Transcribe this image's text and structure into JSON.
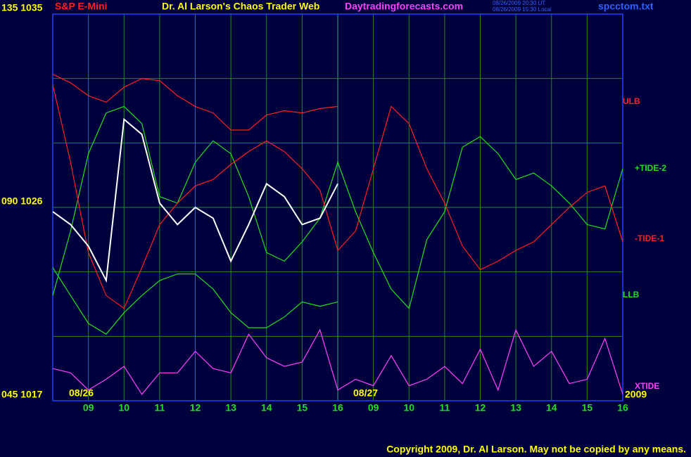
{
  "header": {
    "symbol": "S&P E-Mini",
    "title": "Dr. Al Larson's Chaos Trader Web",
    "site": "Daytradingforecasts.com",
    "timestamp_ut": "08/26/2009 20:30 UT",
    "timestamp_local": "08/26/2009 15:30 Local",
    "file": "spcctom.txt"
  },
  "chart_data": {
    "type": "line",
    "x": [
      0,
      0.5,
      1,
      1.5,
      2,
      2.5,
      3,
      3.5,
      4,
      4.5,
      5,
      5.5,
      6,
      6.5,
      7,
      7.5,
      8,
      8.5,
      9,
      9.5,
      10,
      10.5,
      11,
      11.5,
      12,
      12.5,
      13,
      13.5,
      14,
      14.5,
      15,
      15.5,
      16
    ],
    "xlim": [
      0,
      16
    ],
    "xticks": [
      {
        "value": 1,
        "label": "09"
      },
      {
        "value": 2,
        "label": "10"
      },
      {
        "value": 3,
        "label": "11"
      },
      {
        "value": 4,
        "label": "12"
      },
      {
        "value": 5,
        "label": "13"
      },
      {
        "value": 6,
        "label": "14"
      },
      {
        "value": 7,
        "label": "15"
      },
      {
        "value": 8,
        "label": "16"
      },
      {
        "value": 9,
        "label": "09"
      },
      {
        "value": 10,
        "label": "10"
      },
      {
        "value": 11,
        "label": "11"
      },
      {
        "value": 12,
        "label": "12"
      },
      {
        "value": 13,
        "label": "13"
      },
      {
        "value": 14,
        "label": "14"
      },
      {
        "value": 15,
        "label": "15"
      },
      {
        "value": 16,
        "label": "16"
      }
    ],
    "ylim": [
      1017,
      1035
    ],
    "yticks": [
      {
        "value": 1017,
        "label": "045 1017"
      },
      {
        "value": 1020,
        "label": null
      },
      {
        "value": 1023,
        "label": null
      },
      {
        "value": 1026,
        "label": "090 1026"
      },
      {
        "value": 1029,
        "label": null
      },
      {
        "value": 1032,
        "label": null
      },
      {
        "value": 1035,
        "label": "135 1035"
      }
    ],
    "grid": true,
    "date_labels": [
      "08/26",
      "08/27",
      "2009"
    ],
    "series": [
      {
        "name": "ULB",
        "color": "#ff2020",
        "values": [
          1032.2,
          1031.8,
          1031.2,
          1030.9,
          1031.6,
          1032.0,
          1031.9,
          1031.2,
          1030.7,
          1030.4,
          1029.6,
          1029.6,
          1030.3,
          1030.5,
          1030.4,
          1030.6,
          1030.7,
          null,
          null,
          null,
          null,
          null,
          null,
          null,
          null,
          null,
          null,
          null,
          null,
          null,
          null,
          null,
          null
        ]
      },
      {
        "name": "+TIDE-2",
        "color": "#20e020",
        "values": [
          1021.9,
          1024.9,
          1028.5,
          1030.4,
          1030.7,
          1029.9,
          1026.5,
          1026.2,
          1028.1,
          1029.1,
          1028.5,
          1026.5,
          1023.9,
          1023.5,
          1024.4,
          1025.5,
          1028.1,
          1025.8,
          1023.9,
          1022.2,
          1021.3,
          1024.5,
          1025.8,
          1028.8,
          1029.3,
          1028.5,
          1027.3,
          1027.6,
          1027.0,
          1026.2,
          1025.2,
          1025.0,
          1027.8
        ]
      },
      {
        "name": "-TIDE-1",
        "color": "#ff2020",
        "values": [
          1031.7,
          1028.1,
          1023.9,
          1021.9,
          1021.3,
          1023.2,
          1025.2,
          1026.2,
          1027.0,
          1027.3,
          1028.0,
          1028.6,
          1029.1,
          1028.6,
          1027.8,
          1026.8,
          1024.0,
          1024.9,
          1027.8,
          1030.7,
          1029.9,
          1027.8,
          1026.2,
          1024.2,
          1023.1,
          1023.5,
          1024.0,
          1024.4,
          1025.2,
          1026.0,
          1026.7,
          1027.0,
          1024.4
        ]
      },
      {
        "name": "LLB",
        "color": "#20e020",
        "values": [
          1023.2,
          1021.9,
          1020.6,
          1020.1,
          1021.1,
          1021.9,
          1022.6,
          1022.9,
          1022.9,
          1022.2,
          1021.1,
          1020.4,
          1020.4,
          1020.9,
          1021.6,
          1021.4,
          1021.6,
          null,
          null,
          null,
          null,
          null,
          null,
          null,
          null,
          null,
          null,
          null,
          null,
          null,
          null,
          null,
          null
        ]
      },
      {
        "name": "XTIDE",
        "color": "#ff40ff",
        "values": [
          1018.5,
          1018.3,
          1017.5,
          1018.0,
          1018.6,
          1017.3,
          1018.3,
          1018.3,
          1019.3,
          1018.5,
          1018.3,
          1020.1,
          1019.0,
          1018.6,
          1018.8,
          1020.3,
          1017.5,
          1018.0,
          1017.7,
          1019.1,
          1017.7,
          1018.0,
          1018.6,
          1017.8,
          1019.4,
          1017.5,
          1020.3,
          1018.6,
          1019.3,
          1017.8,
          1018.0,
          1019.9,
          1017.3
        ]
      },
      {
        "color": "#ffffff",
        "values": [
          1025.8,
          1025.2,
          1024.2,
          1022.6,
          1030.1,
          1029.4,
          1026.2,
          1025.2,
          1026.0,
          1025.5,
          1023.5,
          1025.2,
          1027.1,
          1026.5,
          1025.2,
          1025.5,
          1027.1,
          null,
          null,
          null,
          null,
          null,
          null,
          null,
          null,
          null,
          null,
          null,
          null,
          null,
          null,
          null,
          null
        ]
      }
    ]
  },
  "footer": {
    "copyright": "Copyright 2009, Dr. Al Larson. May not be copied by any means."
  }
}
